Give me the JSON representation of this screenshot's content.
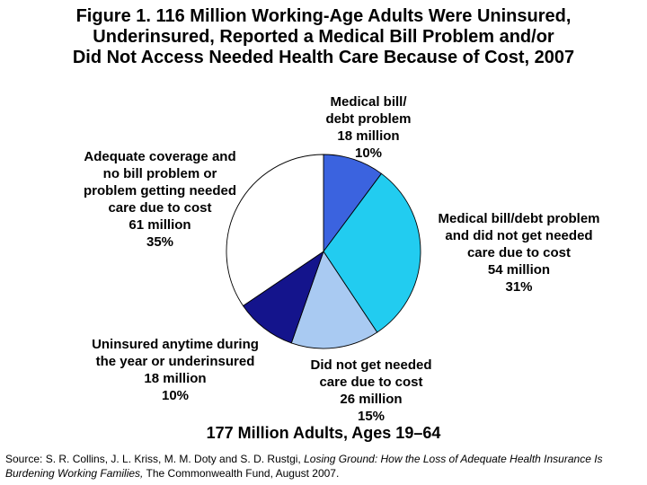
{
  "title": "Figure 1. 116 Million Working-Age Adults Were Uninsured,\nUnderinsured, Reported a Medical Bill Problem and/or\nDid Not Access Needed Health Care Because of Cost, 2007",
  "chart_data": {
    "type": "pie",
    "title": "Figure 1. 116 Million Working-Age Adults Were Uninsured, Underinsured, Reported a Medical Bill Problem and/or Did Not Access Needed Health Care Because of Cost, 2007",
    "subtitle": "177 Million Adults, Ages 19–64",
    "total_millions": 177,
    "unit": "million adults",
    "start_angle_deg": 0,
    "direction": "clockwise",
    "legend_position": "outside-labels",
    "slices": [
      {
        "id": "medical-bill-debt-problem",
        "label": "Medical bill/debt problem",
        "value_millions": 18,
        "percent": 10,
        "color": "#3B63DF"
      },
      {
        "id": "bill-problem-and-no-needed-care",
        "label": "Medical bill/debt problem and did not get needed care due to cost",
        "value_millions": 54,
        "percent": 31,
        "color": "#22CCF0"
      },
      {
        "id": "did-not-get-needed-care",
        "label": "Did not get needed care due to cost",
        "value_millions": 26,
        "percent": 15,
        "color": "#A9CAF2"
      },
      {
        "id": "uninsured-or-underinsured",
        "label": "Uninsured anytime during the year or underinsured",
        "value_millions": 18,
        "percent": 10,
        "color": "#14148C"
      },
      {
        "id": "adequate-coverage-no-problem",
        "label": "Adequate coverage and no bill problem or problem getting needed care due to cost",
        "value_millions": 61,
        "percent": 35,
        "color": "#FFFFFF"
      }
    ],
    "outline_color": "#000000"
  },
  "labels": {
    "top": "Medical bill/\ndebt problem\n18 million\n10%",
    "left": "Adequate coverage and\nno bill problem or\nproblem getting needed\ncare due to cost\n61 million\n35%",
    "right": "Medical bill/debt problem\nand did not get needed\ncare due to cost\n54 million\n31%",
    "bottom_left": "Uninsured anytime during\nthe year or underinsured\n18 million\n10%",
    "bottom_mid": "Did not get needed\ncare due to cost\n26 million\n15%"
  },
  "footer": {
    "total_label": "177 Million Adults, Ages 19–64"
  },
  "source": {
    "prefix": "Source: S. R. Collins, J. L. Kriss, M. M. Doty and S. D. Rustgi, ",
    "italic_title": "Losing Ground: How the Loss of Adequate Health Insurance Is Burdening Working Families,",
    "suffix": " The Commonwealth Fund, August 2007."
  }
}
